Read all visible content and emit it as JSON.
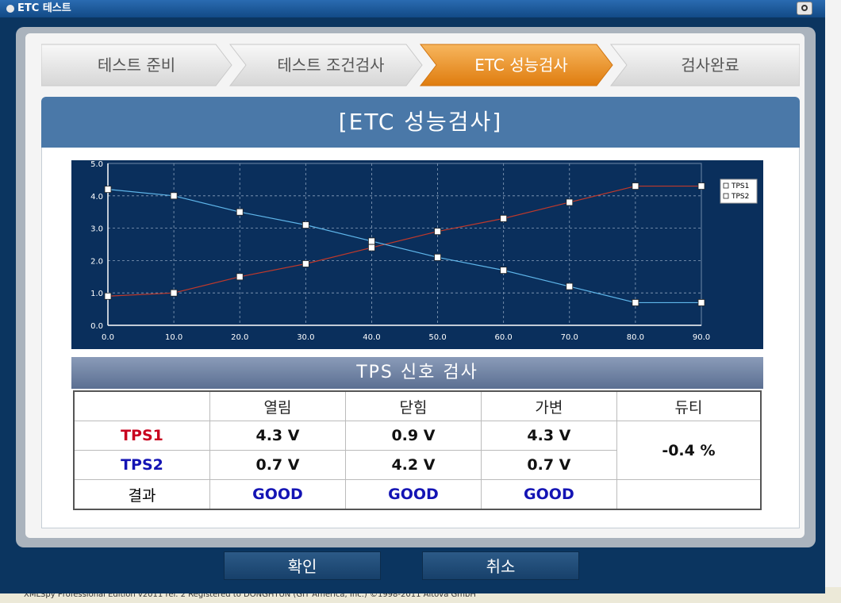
{
  "window": {
    "title": "ETC 테스트"
  },
  "status_bar": {
    "text": "XMLSpy Professional Edition v2011 rel. 2    Registered to DONGHYUN (GIT America, Inc.)    ©1998-2011 Altova GmbH"
  },
  "steps": [
    {
      "label": "테스트 준비",
      "active": false
    },
    {
      "label": "테스트 조건검사",
      "active": false
    },
    {
      "label": "ETC 성능검사",
      "active": true
    },
    {
      "label": "검사완료",
      "active": false
    }
  ],
  "section_title": "[ETC 성능검사]",
  "chart_data": {
    "type": "line",
    "x": [
      0.0,
      10.0,
      20.0,
      30.0,
      40.0,
      50.0,
      60.0,
      70.0,
      80.0,
      90.0
    ],
    "x_ticks": [
      "0.0",
      "10.0",
      "20.0",
      "30.0",
      "40.0",
      "50.0",
      "60.0",
      "70.0",
      "80.0",
      "90.0"
    ],
    "y_ticks": [
      "0.0",
      "1.0",
      "2.0",
      "3.0",
      "4.0",
      "5.0"
    ],
    "xlim": [
      0,
      90
    ],
    "ylim": [
      0,
      5
    ],
    "grid": true,
    "legend": "top-right",
    "series": [
      {
        "name": "TPS1",
        "color": "#c0392b",
        "values": [
          0.9,
          1.0,
          1.5,
          1.9,
          2.4,
          2.9,
          3.3,
          3.8,
          4.3,
          4.3
        ]
      },
      {
        "name": "TPS2",
        "color": "#5fb6ea",
        "values": [
          4.2,
          4.0,
          3.5,
          3.1,
          2.6,
          2.1,
          1.7,
          1.2,
          0.7,
          0.7
        ]
      }
    ]
  },
  "tps_section": {
    "title": "TPS 신호 검사",
    "headers": [
      "",
      "열림",
      "닫힘",
      "가변",
      "듀티"
    ],
    "rows": [
      {
        "label": "TPS1",
        "label_color": "red",
        "cells": [
          "4.3 V",
          "0.9 V",
          "4.3 V"
        ]
      },
      {
        "label": "TPS2",
        "label_color": "blue",
        "cells": [
          "0.7 V",
          "4.2 V",
          "0.7 V"
        ]
      },
      {
        "label": "결과",
        "label_color": "black",
        "cells": [
          "GOOD",
          "GOOD",
          "GOOD"
        ]
      }
    ],
    "duty": "-0.4 %"
  },
  "buttons": {
    "confirm": "확인",
    "cancel": "취소"
  }
}
